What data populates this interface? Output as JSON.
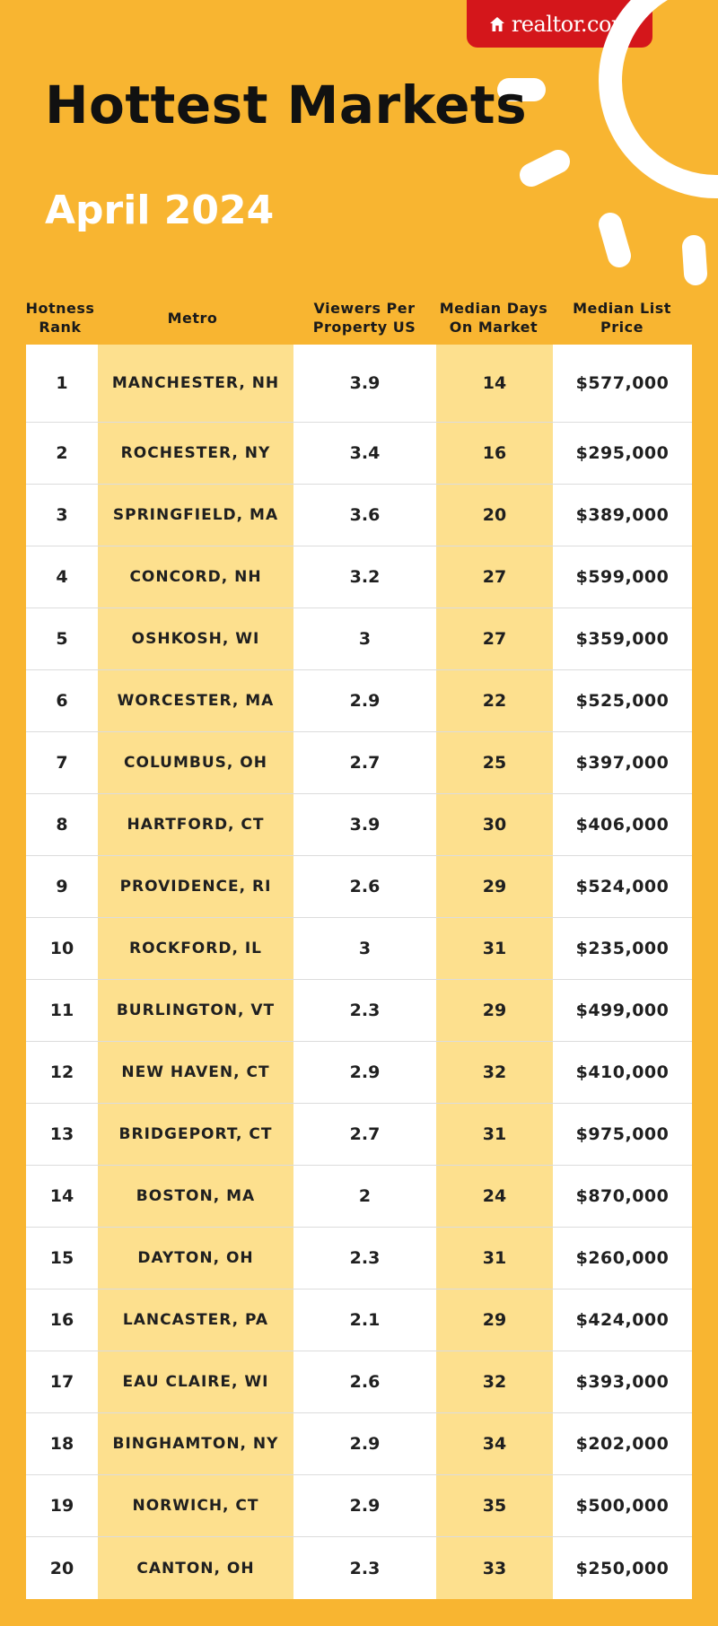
{
  "brand": {
    "logo_text": "realtor.com",
    "logo_icon": "house-icon"
  },
  "title": "Hottest Markets",
  "subtitle": "April 2024",
  "colors": {
    "background": "#f8b531",
    "accent_band": "#fde08e",
    "brand_red": "#d4161b"
  },
  "table": {
    "headers": {
      "rank": "Hotness Rank",
      "metro": "Metro",
      "viewers": "Viewers Per Property US",
      "days": "Median Days On Market",
      "price": "Median List Price"
    },
    "rows": [
      {
        "rank": "1",
        "metro": "MANCHESTER, NH",
        "viewers": "3.9",
        "days": "14",
        "price": "$577,000"
      },
      {
        "rank": "2",
        "metro": "ROCHESTER, NY",
        "viewers": "3.4",
        "days": "16",
        "price": "$295,000"
      },
      {
        "rank": "3",
        "metro": "SPRINGFIELD, MA",
        "viewers": "3.6",
        "days": "20",
        "price": "$389,000"
      },
      {
        "rank": "4",
        "metro": "CONCORD, NH",
        "viewers": "3.2",
        "days": "27",
        "price": "$599,000"
      },
      {
        "rank": "5",
        "metro": "OSHKOSH, WI",
        "viewers": "3",
        "days": "27",
        "price": "$359,000"
      },
      {
        "rank": "6",
        "metro": "WORCESTER, MA",
        "viewers": "2.9",
        "days": "22",
        "price": "$525,000"
      },
      {
        "rank": "7",
        "metro": "COLUMBUS, OH",
        "viewers": "2.7",
        "days": "25",
        "price": "$397,000"
      },
      {
        "rank": "8",
        "metro": "HARTFORD, CT",
        "viewers": "3.9",
        "days": "30",
        "price": "$406,000"
      },
      {
        "rank": "9",
        "metro": "PROVIDENCE, RI",
        "viewers": "2.6",
        "days": "29",
        "price": "$524,000"
      },
      {
        "rank": "10",
        "metro": "ROCKFORD, IL",
        "viewers": "3",
        "days": "31",
        "price": "$235,000"
      },
      {
        "rank": "11",
        "metro": "BURLINGTON, VT",
        "viewers": "2.3",
        "days": "29",
        "price": "$499,000"
      },
      {
        "rank": "12",
        "metro": "NEW HAVEN, CT",
        "viewers": "2.9",
        "days": "32",
        "price": "$410,000"
      },
      {
        "rank": "13",
        "metro": "BRIDGEPORT, CT",
        "viewers": "2.7",
        "days": "31",
        "price": "$975,000"
      },
      {
        "rank": "14",
        "metro": "BOSTON, MA",
        "viewers": "2",
        "days": "24",
        "price": "$870,000"
      },
      {
        "rank": "15",
        "metro": "DAYTON, OH",
        "viewers": "2.3",
        "days": "31",
        "price": "$260,000"
      },
      {
        "rank": "16",
        "metro": "LANCASTER, PA",
        "viewers": "2.1",
        "days": "29",
        "price": "$424,000"
      },
      {
        "rank": "17",
        "metro": "EAU CLAIRE, WI",
        "viewers": "2.6",
        "days": "32",
        "price": "$393,000"
      },
      {
        "rank": "18",
        "metro": "BINGHAMTON, NY",
        "viewers": "2.9",
        "days": "34",
        "price": "$202,000"
      },
      {
        "rank": "19",
        "metro": "NORWICH, CT",
        "viewers": "2.9",
        "days": "35",
        "price": "$500,000"
      },
      {
        "rank": "20",
        "metro": "CANTON, OH",
        "viewers": "2.3",
        "days": "33",
        "price": "$250,000"
      }
    ]
  }
}
